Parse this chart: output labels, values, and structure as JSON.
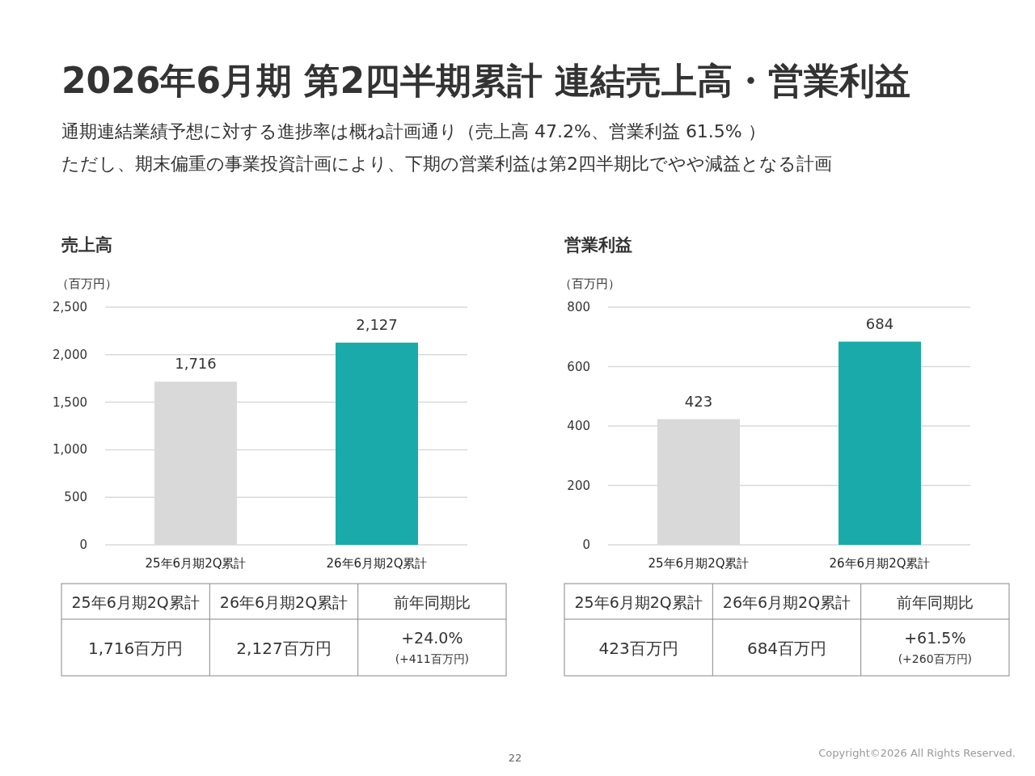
{
  "chart_data": [
    {
      "type": "other",
      "title": "2026年6月期 第2四半期累計 連結売上高・営業利益",
      "subtitle": "通期連結業績予想に対する進捗率は概ね計画通り（売上高 47.2%、営業利益 61.5% ）",
      "annotations": [
        "ただし、期末偏重の事業投資計画により、下期の営業利益は第2四半期比でやや減益となる計画",
        "22",
        "Copyright©2026 All Rights Reserved."
      ]
    },
    {
      "type": "bar",
      "title": "売上高",
      "ylabel": "（百万円）",
      "categories": [
        "25年6月期2Q累計",
        "26年6月期2Q累計"
      ],
      "values": [
        1716,
        2127
      ],
      "colors": [
        "#d9d9d9",
        "#1aaaaa"
      ],
      "value_labels": [
        "1,716",
        "2,127"
      ],
      "ylim": [
        0,
        2500
      ],
      "yticks": [
        0,
        500,
        {
          "value": 1000,
          "label": "1,000"
        },
        {
          "value": 1500,
          "label": "1,500"
        },
        {
          "value": 2000,
          "label": "2,000"
        },
        {
          "value": 2500,
          "label": "2,500"
        }
      ],
      "grid": "y",
      "annotations": [
        "前年同期比",
        "1,716百万円",
        "2,127百万円",
        "+24.0%",
        "(+411百万円)"
      ]
    },
    {
      "type": "bar",
      "title": "営業利益",
      "ylabel": "（百万円）",
      "categories": [
        "25年6月期2Q累計",
        "26年6月期2Q累計"
      ],
      "values": [
        423,
        684
      ],
      "colors": [
        "#d9d9d9",
        "#1aaaaa"
      ],
      "value_labels": [
        "423",
        "684"
      ],
      "ylim": [
        0,
        800
      ],
      "yticks": [
        0,
        200,
        400,
        600,
        800
      ],
      "grid": "y",
      "annotations": [
        "前年同期比",
        "423百万円",
        "684百万円",
        "+61.5%",
        "(+260百万円)"
      ]
    }
  ]
}
